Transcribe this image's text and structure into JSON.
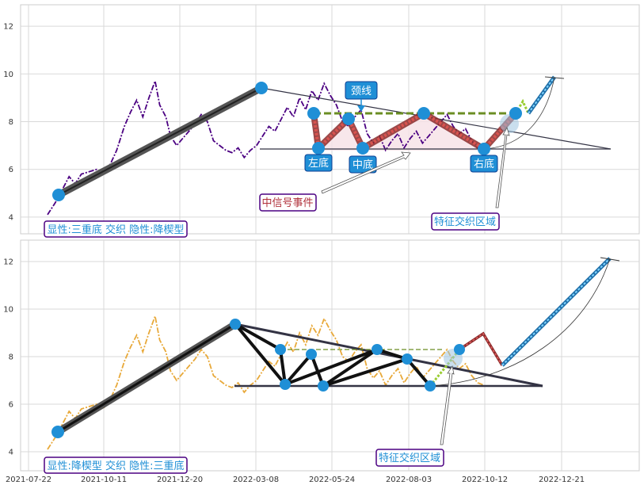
{
  "chart_data": [
    {
      "type": "line",
      "panel": "top",
      "ylim": [
        3.3,
        12.9
      ],
      "yticks": [
        "4",
        "6",
        "8",
        "10",
        "12"
      ],
      "line_color": "#4b0082",
      "series": [
        {
          "points": [
            [
              0,
              4.1
            ],
            [
              5,
              4.6
            ],
            [
              10,
              5.2
            ],
            [
              14,
              5.7
            ],
            [
              18,
              5.4
            ],
            [
              22,
              5.8
            ],
            [
              27,
              5.9
            ],
            [
              32,
              6.0
            ],
            [
              36,
              5.8
            ],
            [
              40,
              6.1
            ],
            [
              45,
              6.8
            ],
            [
              50,
              7.8
            ],
            [
              54,
              8.4
            ],
            [
              58,
              8.9
            ],
            [
              62,
              8.2
            ],
            [
              66,
              9.0
            ],
            [
              70,
              9.7
            ],
            [
              73,
              8.7
            ],
            [
              77,
              8.2
            ],
            [
              80,
              7.4
            ],
            [
              84,
              7.0
            ],
            [
              88,
              7.3
            ],
            [
              92,
              7.6
            ],
            [
              96,
              7.9
            ],
            [
              100,
              8.3
            ],
            [
              104,
              8.0
            ],
            [
              108,
              7.2
            ],
            [
              112,
              7.0
            ],
            [
              116,
              6.8
            ],
            [
              120,
              6.7
            ],
            [
              124,
              6.9
            ],
            [
              128,
              6.5
            ],
            [
              132,
              6.8
            ],
            [
              136,
              7.0
            ],
            [
              140,
              7.4
            ],
            [
              144,
              7.8
            ],
            [
              148,
              7.6
            ],
            [
              152,
              8.1
            ],
            [
              156,
              8.6
            ],
            [
              160,
              8.2
            ],
            [
              164,
              9.0
            ],
            [
              168,
              8.5
            ],
            [
              172,
              9.3
            ],
            [
              176,
              8.9
            ],
            [
              180,
              9.6
            ],
            [
              184,
              9.1
            ],
            [
              188,
              8.7
            ],
            [
              192,
              8.0
            ],
            [
              196,
              7.8
            ],
            [
              200,
              8.2
            ],
            [
              204,
              8.5
            ],
            [
              208,
              7.5
            ],
            [
              212,
              7.1
            ],
            [
              216,
              7.4
            ],
            [
              220,
              6.8
            ],
            [
              224,
              7.2
            ],
            [
              228,
              7.5
            ],
            [
              232,
              6.9
            ],
            [
              236,
              7.3
            ],
            [
              240,
              7.6
            ],
            [
              244,
              7.1
            ],
            [
              248,
              7.4
            ],
            [
              252,
              7.7
            ],
            [
              256,
              8.0
            ],
            [
              260,
              8.3
            ],
            [
              264,
              7.8
            ],
            [
              268,
              7.5
            ],
            [
              272,
              7.7
            ],
            [
              276,
              7.2
            ],
            [
              280,
              6.9
            ],
            [
              284,
              6.8
            ]
          ]
        }
      ],
      "legend_text": "显性:三重底 交织 隐性:降楔型",
      "annotations": [
        "颈线",
        "左底",
        "中底",
        "右底",
        "中信号事件",
        "特征交织区域"
      ]
    },
    {
      "type": "line",
      "panel": "bottom",
      "ylim": [
        3.2,
        12.9
      ],
      "yticks": [
        "4",
        "6",
        "8",
        "10",
        "12"
      ],
      "line_color": "#e8a93a",
      "xticks": [
        "2021-07-22",
        "2021-10-11",
        "2021-12-20",
        "2022-03-08",
        "2022-05-24",
        "2022-08-03",
        "2022-10-12",
        "2022-12-21"
      ],
      "series": [
        {
          "points": [
            [
              0,
              4.1
            ],
            [
              5,
              4.6
            ],
            [
              10,
              5.2
            ],
            [
              14,
              5.7
            ],
            [
              18,
              5.4
            ],
            [
              22,
              5.8
            ],
            [
              27,
              5.9
            ],
            [
              32,
              6.0
            ],
            [
              36,
              5.8
            ],
            [
              40,
              6.1
            ],
            [
              45,
              6.8
            ],
            [
              50,
              7.8
            ],
            [
              54,
              8.4
            ],
            [
              58,
              8.9
            ],
            [
              62,
              8.2
            ],
            [
              66,
              9.0
            ],
            [
              70,
              9.7
            ],
            [
              73,
              8.7
            ],
            [
              77,
              8.2
            ],
            [
              80,
              7.4
            ],
            [
              84,
              7.0
            ],
            [
              88,
              7.3
            ],
            [
              92,
              7.6
            ],
            [
              96,
              7.9
            ],
            [
              100,
              8.3
            ],
            [
              104,
              8.0
            ],
            [
              108,
              7.2
            ],
            [
              112,
              7.0
            ],
            [
              116,
              6.8
            ],
            [
              120,
              6.7
            ],
            [
              124,
              6.9
            ],
            [
              128,
              6.5
            ],
            [
              132,
              6.8
            ],
            [
              136,
              7.0
            ],
            [
              140,
              7.4
            ],
            [
              144,
              7.8
            ],
            [
              148,
              7.6
            ],
            [
              152,
              8.1
            ],
            [
              156,
              8.6
            ],
            [
              160,
              8.2
            ],
            [
              164,
              9.0
            ],
            [
              168,
              8.5
            ],
            [
              172,
              9.3
            ],
            [
              176,
              8.9
            ],
            [
              180,
              9.6
            ],
            [
              184,
              9.1
            ],
            [
              188,
              8.7
            ],
            [
              192,
              8.0
            ],
            [
              196,
              7.8
            ],
            [
              200,
              8.2
            ],
            [
              204,
              8.5
            ],
            [
              208,
              7.5
            ],
            [
              212,
              7.1
            ],
            [
              216,
              7.4
            ],
            [
              220,
              6.8
            ],
            [
              224,
              7.2
            ],
            [
              228,
              7.5
            ],
            [
              232,
              6.9
            ],
            [
              236,
              7.3
            ],
            [
              240,
              7.6
            ],
            [
              244,
              7.1
            ],
            [
              248,
              7.4
            ],
            [
              252,
              7.7
            ],
            [
              256,
              8.0
            ],
            [
              260,
              8.3
            ],
            [
              264,
              7.8
            ],
            [
              268,
              7.5
            ],
            [
              272,
              7.7
            ],
            [
              276,
              7.2
            ],
            [
              280,
              6.9
            ],
            [
              284,
              6.8
            ]
          ]
        }
      ],
      "legend_text": "显性:降楔型 交织 隐性:三重底",
      "annotations": [
        "特征交织区域"
      ]
    }
  ],
  "colors": {
    "label_box_fill": "#1f8fd6",
    "label_box_border": "#0b3d91",
    "legend_border": "#4b0082",
    "legend_text": "#1f8fd6",
    "neckline": "#6b8e23",
    "pattern_red": "#c0504d",
    "target_blue": "#4aa3d8",
    "marker": "#1f8fd6"
  }
}
